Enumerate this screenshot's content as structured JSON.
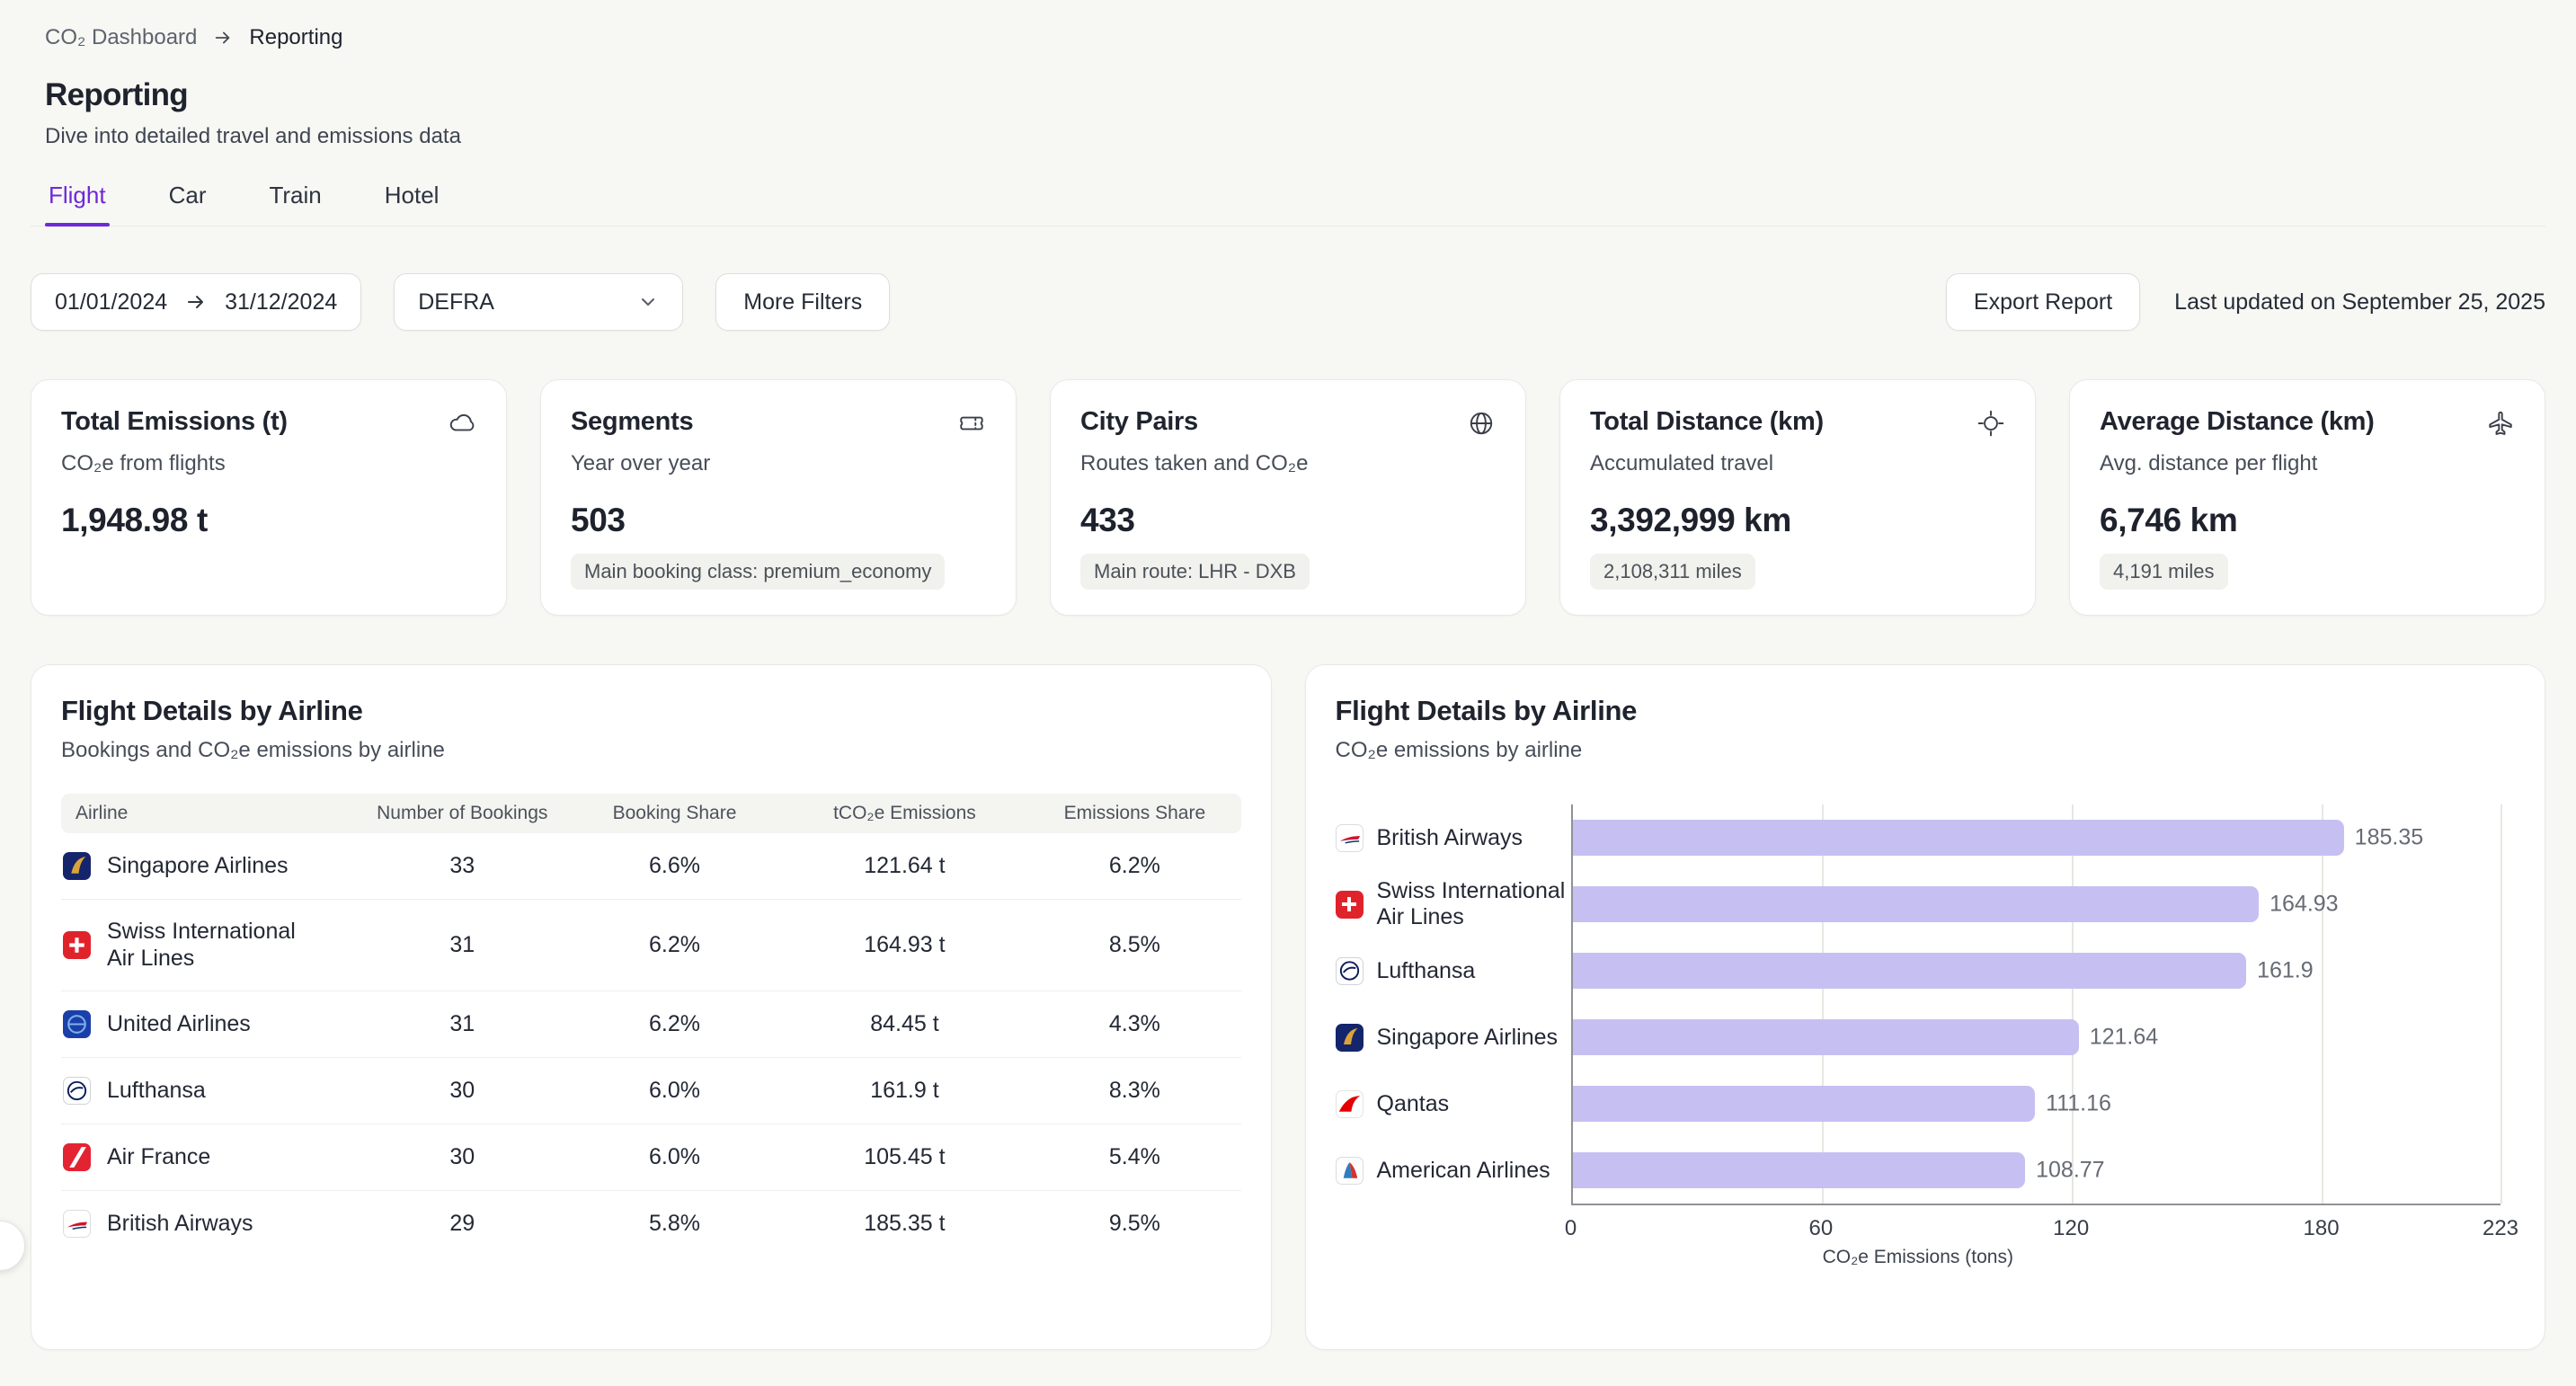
{
  "breadcrumb": {
    "root": "CO₂ Dashboard",
    "current": "Reporting"
  },
  "header": {
    "title": "Reporting",
    "subtitle": "Dive into detailed travel and emissions data"
  },
  "tabs": [
    {
      "label": "Flight",
      "active": true
    },
    {
      "label": "Car",
      "active": false
    },
    {
      "label": "Train",
      "active": false
    },
    {
      "label": "Hotel",
      "active": false
    }
  ],
  "filters": {
    "date_start": "01/01/2024",
    "date_end": "31/12/2024",
    "methodology": "DEFRA",
    "more_filters_label": "More Filters",
    "export_label": "Export Report",
    "last_updated": "Last updated on September 25, 2025"
  },
  "stats": [
    {
      "title": "Total Emissions (t)",
      "subtitle": "CO₂e from flights",
      "value": "1,948.98 t",
      "icon": "cloud-icon",
      "badge": ""
    },
    {
      "title": "Segments",
      "subtitle": "Year over year",
      "value": "503",
      "icon": "ticket-icon",
      "badge": "Main booking class: premium_economy"
    },
    {
      "title": "City Pairs",
      "subtitle": "Routes taken and CO₂e",
      "value": "433",
      "icon": "globe-icon",
      "badge": "Main route: LHR - DXB"
    },
    {
      "title": "Total Distance (km)",
      "subtitle": "Accumulated travel",
      "value": "3,392,999 km",
      "icon": "locate-icon",
      "badge": "2,108,311 miles"
    },
    {
      "title": "Average Distance (km)",
      "subtitle": "Avg. distance per flight",
      "value": "6,746 km",
      "icon": "plane-icon",
      "badge": "4,191 miles"
    }
  ],
  "airline_table": {
    "title": "Flight Details by Airline",
    "subtitle": "Bookings and CO₂e emissions by airline",
    "columns": [
      "Airline",
      "Number of Bookings",
      "Booking Share",
      "tCO₂e Emissions",
      "Emissions Share"
    ],
    "rows": [
      {
        "airline": "Singapore Airlines",
        "bookings": "33",
        "booking_share": "6.6%",
        "emissions": "121.64 t",
        "emissions_share": "6.2%"
      },
      {
        "airline": "Swiss International Air Lines",
        "bookings": "31",
        "booking_share": "6.2%",
        "emissions": "164.93 t",
        "emissions_share": "8.5%"
      },
      {
        "airline": "United Airlines",
        "bookings": "31",
        "booking_share": "6.2%",
        "emissions": "84.45 t",
        "emissions_share": "4.3%"
      },
      {
        "airline": "Lufthansa",
        "bookings": "30",
        "booking_share": "6.0%",
        "emissions": "161.9 t",
        "emissions_share": "8.3%"
      },
      {
        "airline": "Air France",
        "bookings": "30",
        "booking_share": "6.0%",
        "emissions": "105.45 t",
        "emissions_share": "5.4%"
      },
      {
        "airline": "British Airways",
        "bookings": "29",
        "booking_share": "5.8%",
        "emissions": "185.35 t",
        "emissions_share": "9.5%"
      }
    ]
  },
  "chart_panel": {
    "title": "Flight Details by Airline",
    "subtitle": "CO₂e emissions by airline"
  },
  "chart_data": {
    "type": "bar",
    "orientation": "horizontal",
    "categories": [
      "British Airways",
      "Swiss International Air Lines",
      "Lufthansa",
      "Singapore Airlines",
      "Qantas",
      "American Airlines"
    ],
    "values": [
      185.35,
      164.93,
      161.9,
      121.64,
      111.16,
      108.77
    ],
    "xlabel": "CO₂e Emissions (tons)",
    "xlim": [
      0,
      223
    ],
    "xticks": [
      0,
      60,
      120,
      180,
      223
    ],
    "bar_color": "#c6c0f2",
    "grid": true,
    "legend": "none"
  }
}
